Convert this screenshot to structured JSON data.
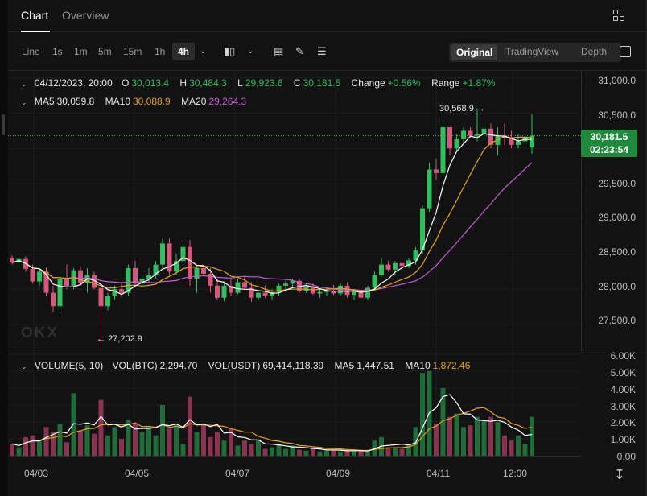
{
  "tabs": [
    {
      "label": "Chart",
      "active": true
    },
    {
      "label": "Overview",
      "active": false
    }
  ],
  "toolbar": {
    "timeframes": [
      "Line",
      "1s",
      "1m",
      "5m",
      "15m",
      "1h",
      "4h"
    ],
    "active_timeframe": "4h",
    "views": [
      "Original",
      "TradingView",
      "Depth"
    ],
    "active_view": "Original"
  },
  "ohlc": {
    "date": "04/12/2023, 20:00",
    "o_label": "O",
    "o": "30,013.4",
    "h_label": "H",
    "h": "30,484.3",
    "l_label": "L",
    "l": "29,923.6",
    "c_label": "C",
    "c": "30,181.5",
    "change_label": "Change",
    "change": "+0.56%",
    "range_label": "Range",
    "range": "+1.87%"
  },
  "ma": {
    "ma5_label": "MA5",
    "ma5": "30,059.8",
    "ma10_label": "MA10",
    "ma10": "30,088.9",
    "ma20_label": "MA20",
    "ma20": "29,264.3"
  },
  "volume_info": {
    "title": "VOLUME(5, 10)",
    "btc_label": "VOL(BTC)",
    "btc": "2,294.70",
    "usdt_label": "VOL(USDT)",
    "usdt": "69,414,118.39",
    "ma5_label": "MA5",
    "ma5": "1,447.51",
    "ma10_label": "MA10",
    "ma10": "1,872.46"
  },
  "price_tag": {
    "price": "30,181.5",
    "countdown": "02:23:54"
  },
  "annotations": {
    "high": "30,568.9",
    "low": "27,202.9"
  },
  "watermark": "OKX",
  "colors": {
    "up": "#2fbf5e",
    "down": "#d8567a",
    "ma5": "#ffffff",
    "ma10": "#e6a313",
    "ma20": "#c85ad8",
    "accent": "#1e8a3c"
  },
  "chart_data": {
    "type": "candlestick",
    "price_axis_ticks": [
      "31,000.0",
      "30,500.0",
      "30,000.0",
      "29,500.0",
      "29,000.0",
      "28,500.0",
      "28,000.0",
      "27,500.0"
    ],
    "volume_axis_ticks": [
      "6.00K",
      "5.00K",
      "4.00K",
      "3.00K",
      "2.00K",
      "1.00K",
      "0.00"
    ],
    "date_ticks": [
      "04/03",
      "04/05",
      "04/07",
      "04/09",
      "04/11",
      "12:00"
    ],
    "ylim": [
      27100,
      31100
    ],
    "vol_ylim": [
      0,
      6000
    ],
    "candles": [
      [
        28450,
        28480,
        28350,
        28380,
        700
      ],
      [
        28380,
        28460,
        28300,
        28430,
        500
      ],
      [
        28430,
        28470,
        28250,
        28290,
        1100
      ],
      [
        28290,
        28350,
        28080,
        28110,
        1200
      ],
      [
        28110,
        28300,
        28050,
        28250,
        900
      ],
      [
        28250,
        28310,
        27900,
        27950,
        1700
      ],
      [
        27950,
        28050,
        27680,
        27760,
        1400
      ],
      [
        27760,
        28250,
        27700,
        28150,
        1900
      ],
      [
        28150,
        28350,
        28000,
        28050,
        800
      ],
      [
        28050,
        28300,
        28000,
        28270,
        3700
      ],
      [
        28270,
        28320,
        28050,
        28090,
        1500
      ],
      [
        28090,
        28300,
        27950,
        28200,
        1800
      ],
      [
        28200,
        28250,
        28000,
        28020,
        1300
      ],
      [
        28020,
        28100,
        27200,
        27760,
        3300
      ],
      [
        27760,
        27950,
        27700,
        27900,
        1200
      ],
      [
        27900,
        28050,
        27850,
        28000,
        1700
      ],
      [
        28000,
        28100,
        27880,
        27950,
        1000
      ],
      [
        27950,
        28350,
        27900,
        28300,
        2100
      ],
      [
        28300,
        28400,
        28050,
        28080,
        1900
      ],
      [
        28080,
        28200,
        28050,
        28150,
        1400
      ],
      [
        28150,
        28300,
        28100,
        28200,
        1700
      ],
      [
        28200,
        28400,
        28150,
        28350,
        1200
      ],
      [
        28350,
        28720,
        28300,
        28650,
        3000
      ],
      [
        28650,
        28720,
        28200,
        28250,
        1600
      ],
      [
        28250,
        28500,
        28200,
        28400,
        1900
      ],
      [
        28400,
        28650,
        28350,
        28600,
        700
      ],
      [
        28600,
        28700,
        28050,
        28150,
        3500
      ],
      [
        28150,
        28350,
        27950,
        28300,
        1400
      ],
      [
        28300,
        28350,
        28180,
        28220,
        1900
      ],
      [
        28220,
        28300,
        27950,
        28050,
        1100
      ],
      [
        28050,
        28150,
        27850,
        27880,
        1400
      ],
      [
        27880,
        28100,
        27830,
        28050,
        900
      ],
      [
        28050,
        28150,
        27900,
        27950,
        1600
      ],
      [
        27950,
        28150,
        27930,
        28100,
        600
      ],
      [
        28100,
        28200,
        28000,
        28020,
        900
      ],
      [
        28020,
        28100,
        27820,
        27880,
        700
      ],
      [
        27880,
        27980,
        27850,
        27950,
        900
      ],
      [
        27950,
        28050,
        27880,
        27900,
        400
      ],
      [
        27900,
        28000,
        27850,
        27960,
        500
      ],
      [
        27960,
        28080,
        27900,
        28050,
        700
      ],
      [
        28050,
        28120,
        28000,
        28080,
        400
      ],
      [
        28080,
        28150,
        28020,
        28120,
        600
      ],
      [
        28120,
        28150,
        27950,
        27980,
        350
      ],
      [
        27980,
        28080,
        27950,
        28040,
        300
      ],
      [
        28040,
        28080,
        27920,
        27940,
        500
      ],
      [
        27940,
        28000,
        27880,
        27960,
        250
      ],
      [
        27960,
        28020,
        27900,
        27980,
        300
      ],
      [
        27980,
        28060,
        27920,
        27940,
        350
      ],
      [
        27940,
        28080,
        27900,
        28050,
        250
      ],
      [
        28050,
        28100,
        27880,
        27920,
        300
      ],
      [
        27920,
        28000,
        27850,
        27990,
        280
      ],
      [
        27990,
        28050,
        27860,
        27880,
        300
      ],
      [
        27880,
        28050,
        27850,
        28020,
        250
      ],
      [
        28020,
        28250,
        28000,
        28200,
        900
      ],
      [
        28200,
        28450,
        28180,
        28350,
        1100
      ],
      [
        28350,
        28400,
        28250,
        28280,
        500
      ],
      [
        28280,
        28400,
        28200,
        28370,
        500
      ],
      [
        28370,
        28400,
        28300,
        28330,
        400
      ],
      [
        28330,
        28450,
        28300,
        28410,
        700
      ],
      [
        28410,
        28600,
        28350,
        28550,
        1700
      ],
      [
        28550,
        29200,
        28500,
        29150,
        4900
      ],
      [
        29150,
        29800,
        29100,
        29700,
        5000
      ],
      [
        29700,
        29850,
        29550,
        29650,
        1900
      ],
      [
        29650,
        30400,
        29600,
        30300,
        4000
      ],
      [
        30300,
        30300,
        29900,
        30000,
        2300
      ],
      [
        30000,
        30200,
        29950,
        30130,
        2500
      ],
      [
        30130,
        30300,
        30050,
        30250,
        1700
      ],
      [
        30250,
        30300,
        30150,
        30180,
        1800
      ],
      [
        30180,
        30568,
        30100,
        30200,
        2300
      ],
      [
        30200,
        30350,
        30120,
        30280,
        2100
      ],
      [
        30280,
        30350,
        30000,
        30050,
        2300
      ],
      [
        30050,
        30300,
        29900,
        30180,
        2000
      ],
      [
        30180,
        30350,
        30050,
        30150,
        1200
      ],
      [
        30150,
        30250,
        30000,
        30050,
        900
      ],
      [
        30050,
        30200,
        30000,
        30100,
        1200
      ],
      [
        30100,
        30200,
        30050,
        30150,
        700
      ],
      [
        30013,
        30484,
        29923,
        30181,
        2300
      ]
    ]
  }
}
